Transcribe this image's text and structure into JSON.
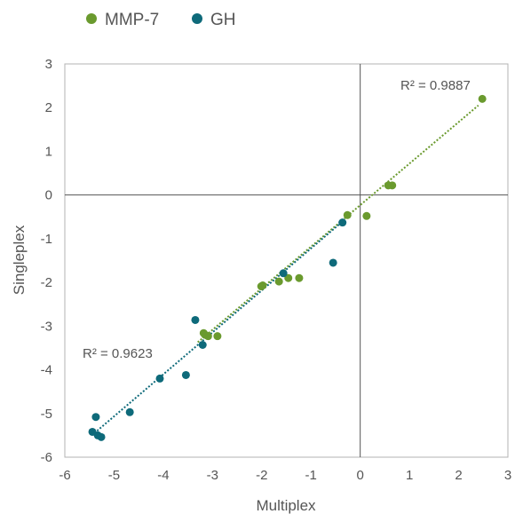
{
  "chart_data": {
    "type": "scatter",
    "xlabel": "Multiplex",
    "ylabel": "Singleplex",
    "xlim": [
      -6,
      3
    ],
    "ylim": [
      -6,
      3
    ],
    "xticks": [
      -6,
      -5,
      -4,
      -3,
      -2,
      -1,
      0,
      1,
      2,
      3
    ],
    "yticks": [
      -6,
      -5,
      -4,
      -3,
      -2,
      -1,
      0,
      1,
      2,
      3
    ],
    "grid": false,
    "legend": "top-left",
    "series": [
      {
        "name": "MMP-7",
        "color": "#6a9a2e",
        "points": [
          [
            2.48,
            2.2
          ],
          [
            0.65,
            0.22
          ],
          [
            0.57,
            0.22
          ],
          [
            0.13,
            -0.48
          ],
          [
            -0.26,
            -0.46
          ],
          [
            -1.24,
            -1.9
          ],
          [
            -1.46,
            -1.9
          ],
          [
            -1.65,
            -1.98
          ],
          [
            -1.98,
            -2.07
          ],
          [
            -2.01,
            -2.09
          ],
          [
            -2.9,
            -3.23
          ],
          [
            -3.09,
            -3.23
          ],
          [
            -3.15,
            -3.2
          ],
          [
            -3.18,
            -3.16
          ]
        ],
        "trendline": {
          "x": [
            -3.3,
            2.4
          ],
          "y": [
            -3.37,
            2.05
          ]
        },
        "r2_label": "R² = 0.9887"
      },
      {
        "name": "GH",
        "color": "#0e6a7a",
        "points": [
          [
            -0.36,
            -0.63
          ],
          [
            -0.55,
            -1.55
          ],
          [
            -1.56,
            -1.79
          ],
          [
            -3.35,
            -2.86
          ],
          [
            -3.2,
            -3.43
          ],
          [
            -4.07,
            -4.2
          ],
          [
            -3.54,
            -4.12
          ],
          [
            -4.68,
            -4.97
          ],
          [
            -5.37,
            -5.08
          ],
          [
            -5.44,
            -5.42
          ],
          [
            -5.33,
            -5.5
          ],
          [
            -5.26,
            -5.54
          ]
        ],
        "trendline": {
          "x": [
            -5.4,
            -0.3
          ],
          "y": [
            -5.45,
            -0.55
          ]
        },
        "r2_label": "R² = 0.9623"
      }
    ]
  }
}
